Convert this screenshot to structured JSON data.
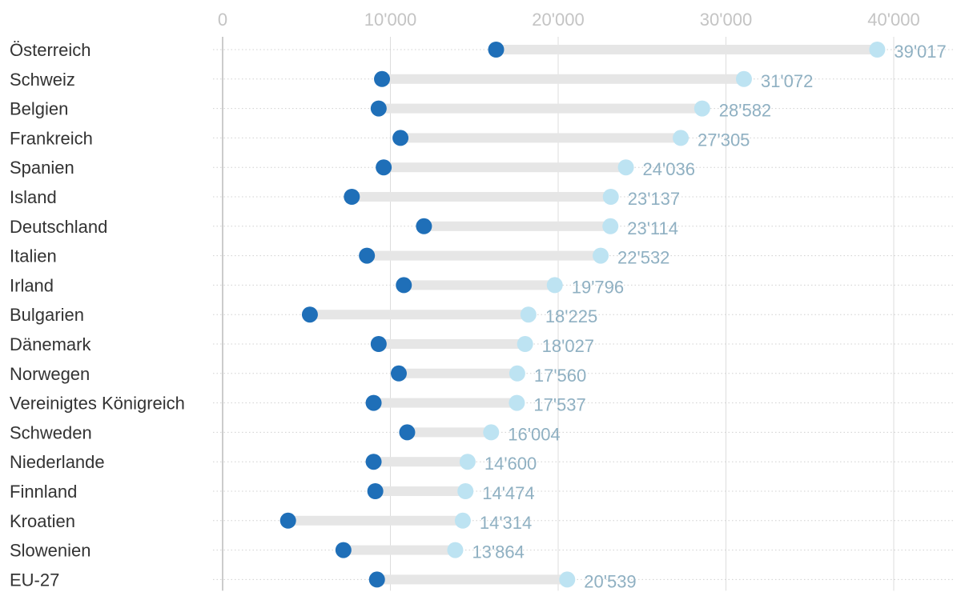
{
  "chart_data": {
    "type": "dumbbell",
    "title": "",
    "xlabel": "",
    "ylabel": "",
    "xlim": [
      0,
      43000
    ],
    "x_ticks": [
      0,
      10000,
      20000,
      30000,
      40000
    ],
    "x_tick_labels": [
      "0",
      "10'000",
      "20'000",
      "30'000",
      "40'000"
    ],
    "grid": true,
    "categories": [
      "Österreich",
      "Schweiz",
      "Belgien",
      "Frankreich",
      "Spanien",
      "Island",
      "Deutschland",
      "Italien",
      "Irland",
      "Bulgarien",
      "Dänemark",
      "Norwegen",
      "Vereinigtes Königreich",
      "Schweden",
      "Niederlande",
      "Finnland",
      "Kroatien",
      "Slowenien",
      "EU-27"
    ],
    "series": [
      {
        "name": "start",
        "color": "#1f6fb8",
        "values": [
          16300,
          9500,
          9300,
          10600,
          9600,
          7700,
          12000,
          8600,
          10800,
          5200,
          9300,
          10500,
          9000,
          11000,
          9000,
          9100,
          3900,
          7200,
          9200
        ]
      },
      {
        "name": "end",
        "color": "#bde3f2",
        "values": [
          39017,
          31072,
          28582,
          27305,
          24036,
          23137,
          23114,
          22532,
          19796,
          18225,
          18027,
          17560,
          17537,
          16004,
          14600,
          14474,
          14314,
          13864,
          20539
        ]
      }
    ],
    "value_labels": [
      "39'017",
      "31'072",
      "28'582",
      "27'305",
      "24'036",
      "23'137",
      "23'114",
      "22'532",
      "19'796",
      "18'225",
      "18'027",
      "17'560",
      "17'537",
      "16'004",
      "14'600",
      "14'474",
      "14'314",
      "13'864",
      "20'539"
    ],
    "colors": {
      "range_bar": "#e6e6e6",
      "gridline": "#dddddd",
      "dotted_line": "#d0d0d0",
      "label_text": "#333333",
      "value_text": "#8fb0c2",
      "tick_text": "#c4c4c4"
    }
  }
}
